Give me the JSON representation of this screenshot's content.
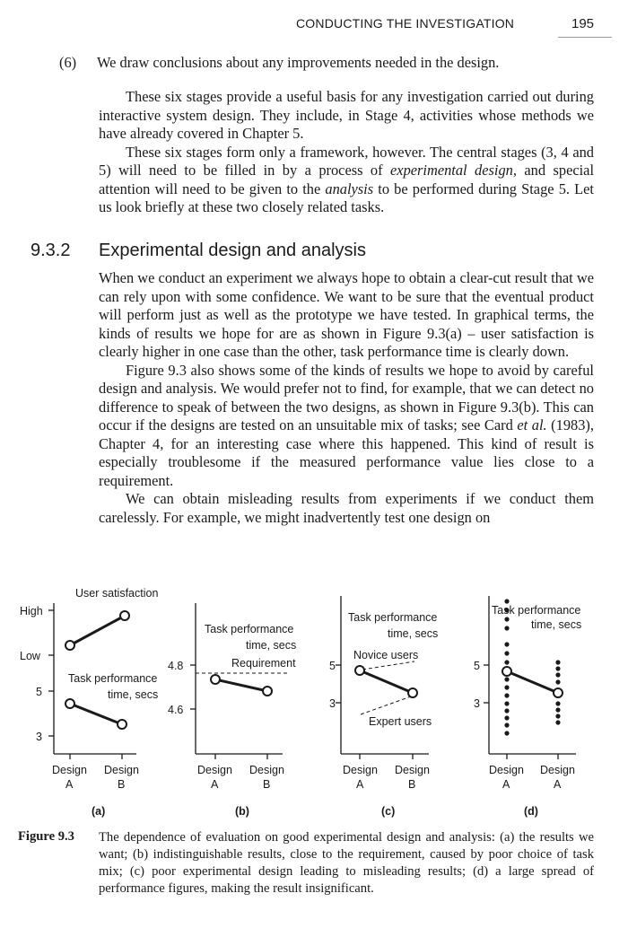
{
  "header": {
    "running_head": "CONDUCTING THE INVESTIGATION",
    "page_number": "195"
  },
  "stage6": {
    "number": "(6)",
    "text": "We draw conclusions about any improvements needed in the design."
  },
  "intro": [
    "These six stages provide a useful basis for any investigation carried out during interactive system design. They include, in Stage 4, activities whose methods we have already covered in Chapter 5.",
    "These six stages form only a framework, however. The central stages (3, 4 and 5) will need to be filled in by a process of <i>experimental design</i>, and special attention will need to be given to the <i>analysis</i> to be performed during Stage 5. Let us look briefly at these two closely related tasks."
  ],
  "section": {
    "number": "9.3.2",
    "title": "Experimental design and analysis"
  },
  "body": [
    "When we conduct an experiment we always hope to obtain a clear-cut result that we can rely upon with some confidence. We want to be sure that the eventual product will perform just as well as the prototype we have tested. In graphical terms, the kinds of results we hope for are as shown in Figure 9.3(a) – user satisfaction is clearly higher in one case than the other, task performance time is clearly down.",
    "Figure 9.3 also shows some of the kinds of results we hope to avoid by careful design and analysis. We would prefer not to find, for example, that we can detect no difference to speak of between the two designs, as shown in Figure 9.3(b). This can occur if the designs are tested on an unsuitable mix of tasks; see Card <i>et al.</i> (1983), Chapter 4, for an interesting case where this happened. This kind of result is especially troublesome if the measured performance value lies close to a requirement.",
    "We can obtain misleading results from experiments if we conduct them carelessly. For example, we might inadvertently test one design on"
  ],
  "figure": {
    "panel_a": {
      "label": "(a)",
      "y_ticks": [
        "High",
        "Low",
        "5",
        "3"
      ],
      "series1_label": "User satisfaction",
      "series2_label_1": "Task performance",
      "series2_label_2": "time, secs",
      "x1": [
        "Design",
        "A"
      ],
      "x2": [
        "Design",
        "B"
      ]
    },
    "panel_b": {
      "label": "(b)",
      "y_ticks": [
        "4.8",
        "4.6"
      ],
      "title_1": "Task performance",
      "title_2": "time, secs",
      "requirement": "Requirement",
      "x1": [
        "Design",
        "A"
      ],
      "x2": [
        "Design",
        "B"
      ]
    },
    "panel_c": {
      "label": "(c)",
      "y_ticks": [
        "5",
        "3"
      ],
      "title_1": "Task performance",
      "title_2": "time, secs",
      "novice": "Novice users",
      "expert": "Expert users",
      "x1": [
        "Design",
        "A"
      ],
      "x2": [
        "Design",
        "B"
      ]
    },
    "panel_d": {
      "label": "(d)",
      "y_ticks": [
        "5",
        "3"
      ],
      "title_1": "Task performance",
      "title_2": "time, secs",
      "x1": [
        "Design",
        "A"
      ],
      "x2": [
        "Design",
        "A"
      ]
    }
  },
  "caption": {
    "label": "Figure 9.3",
    "text": "The dependence of evaluation on good experimental design and analysis: (a) the results we want; (b) indistinguishable results, close to the requirement, caused by poor choice of task mix; (c) poor experimental design leading to misleading results; (d) a large spread of performance figures, making the result insignificant."
  }
}
